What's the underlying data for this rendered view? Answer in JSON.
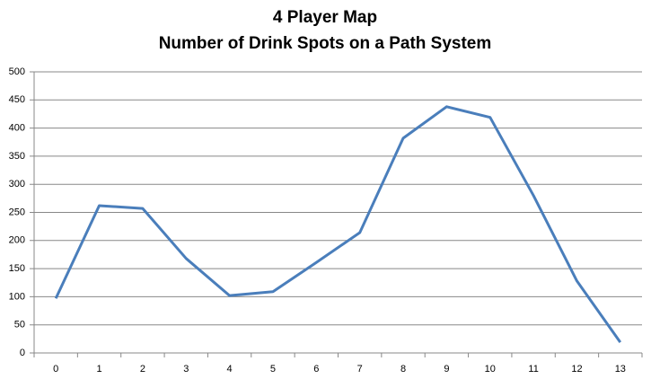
{
  "chart_data": {
    "type": "line",
    "title": "4 Player Map",
    "subtitle": "Number of Drink Spots on a Path System",
    "categories": [
      "0",
      "1",
      "2",
      "3",
      "4",
      "5",
      "6",
      "7",
      "8",
      "9",
      "10",
      "11",
      "12",
      "13"
    ],
    "series": [
      {
        "color": "#4a7ebb",
        "values": [
          97,
          262,
          257,
          168,
          102,
          109,
          161,
          214,
          382,
          438,
          419,
          280,
          128,
          19
        ]
      }
    ],
    "ylim": [
      0,
      500
    ],
    "yticks": [
      0,
      50,
      100,
      150,
      200,
      250,
      300,
      350,
      400,
      450,
      500
    ],
    "grid": true
  }
}
